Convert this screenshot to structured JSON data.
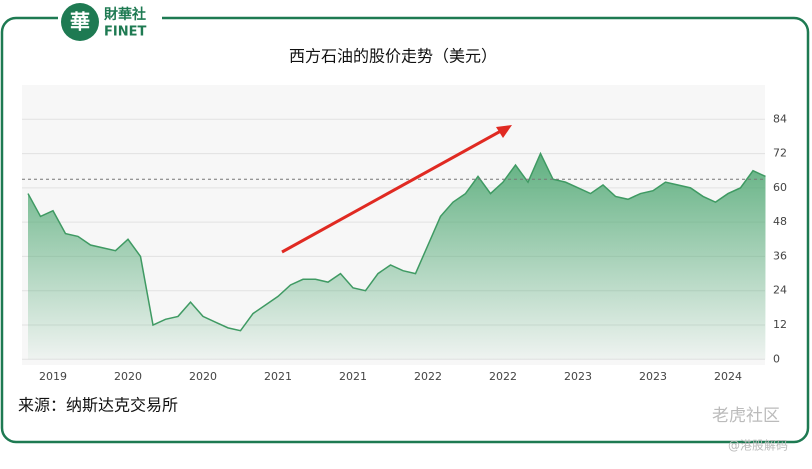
{
  "header": {
    "logo_cn": "財華社",
    "logo_en": "FINET"
  },
  "chart_data": {
    "type": "area",
    "title": "西方石油的股价走势（美元）",
    "categories": [
      null,
      null,
      "2019",
      null,
      null,
      null,
      null,
      null,
      "2020",
      null,
      null,
      null,
      null,
      null,
      "2020",
      null,
      null,
      null,
      null,
      null,
      "2021",
      null,
      null,
      null,
      null,
      null,
      "2021",
      null,
      null,
      null,
      null,
      null,
      "2022",
      null,
      null,
      null,
      null,
      null,
      "2022",
      null,
      null,
      null,
      null,
      null,
      "2023",
      null,
      null,
      null,
      null,
      null,
      "2023",
      null,
      null,
      null,
      null,
      null,
      "2024",
      null,
      null,
      null
    ],
    "values": [
      58,
      50,
      52,
      44,
      43,
      40,
      39,
      38,
      42,
      36,
      12,
      14,
      15,
      20,
      15,
      13,
      11,
      10,
      16,
      19,
      22,
      26,
      28,
      28,
      27,
      30,
      25,
      24,
      30,
      33,
      31,
      30,
      40,
      50,
      55,
      58,
      64,
      58,
      62,
      68,
      62,
      72,
      63,
      62,
      60,
      58,
      61,
      57,
      56,
      58,
      59,
      62,
      61,
      60,
      57,
      55,
      58,
      60,
      66,
      64
    ],
    "color": "#3f9a63",
    "ylim": [
      -2,
      96
    ],
    "yticks": [
      0,
      12,
      24,
      36,
      48,
      60,
      72,
      84
    ],
    "grid": true,
    "reference_line": 63
  },
  "footer": {
    "source": "来源：纳斯达克交易所",
    "watermark": "老虎社区",
    "handle": "@港股解码"
  }
}
